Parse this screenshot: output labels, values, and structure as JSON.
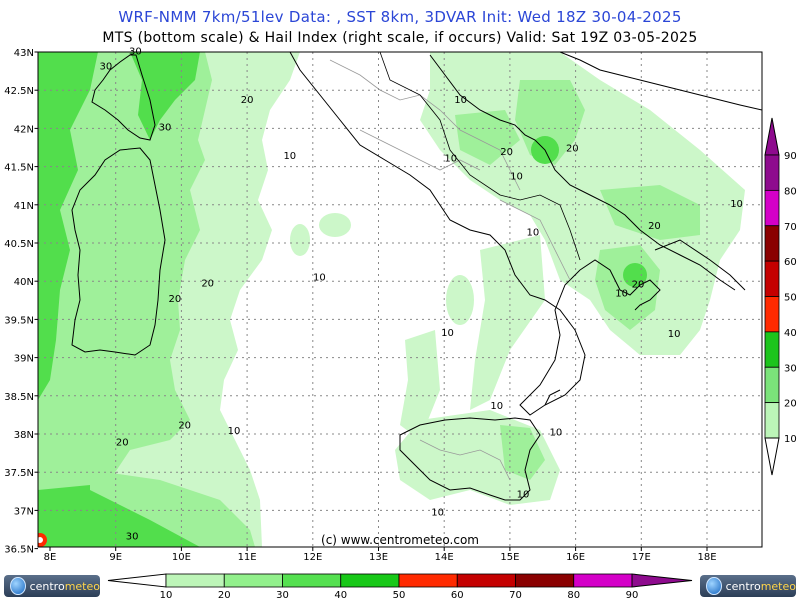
{
  "header": {
    "line1": "WRF-NMM 7km/51lev   Data: , SST 8km, 3DVAR    Init: Wed 18Z 30-04-2025",
    "line2": "MTS (bottom scale) & Hail Index (right scale, if occurs) Valid: Sat 19Z 03-05-2025"
  },
  "credit": "(c) www.centrometeo.com",
  "logo": {
    "text_a": "centro",
    "text_b": "meteo"
  },
  "axes": {
    "lat_labels": [
      "43N",
      "42.5N",
      "42N",
      "41.5N",
      "41N",
      "40.5N",
      "40N",
      "39.5N",
      "39N",
      "38.5N",
      "38N",
      "37.5N",
      "37N",
      "36.5N"
    ],
    "lon_labels": [
      "8E",
      "9E",
      "10E",
      "11E",
      "12E",
      "13E",
      "14E",
      "15E",
      "16E",
      "17E",
      "18E"
    ]
  },
  "contour_labels": [
    {
      "text": "30",
      "lon": 8.85,
      "lat": 42.77
    },
    {
      "text": "30",
      "lon": 9.3,
      "lat": 42.97
    },
    {
      "text": "20",
      "lon": 11.0,
      "lat": 42.33
    },
    {
      "text": "30",
      "lon": 9.75,
      "lat": 41.97
    },
    {
      "text": "10",
      "lon": 11.65,
      "lat": 41.6
    },
    {
      "text": "10",
      "lon": 14.25,
      "lat": 42.33
    },
    {
      "text": "10",
      "lon": 14.1,
      "lat": 41.57
    },
    {
      "text": "20",
      "lon": 14.95,
      "lat": 41.65
    },
    {
      "text": "20",
      "lon": 15.95,
      "lat": 41.7
    },
    {
      "text": "10",
      "lon": 15.1,
      "lat": 41.33
    },
    {
      "text": "10",
      "lon": 18.45,
      "lat": 40.97
    },
    {
      "text": "20",
      "lon": 17.2,
      "lat": 40.68
    },
    {
      "text": "10",
      "lon": 15.35,
      "lat": 40.6
    },
    {
      "text": "20",
      "lon": 16.95,
      "lat": 39.92
    },
    {
      "text": "10",
      "lon": 16.7,
      "lat": 39.8
    },
    {
      "text": "10",
      "lon": 12.1,
      "lat": 40.01
    },
    {
      "text": "20",
      "lon": 10.4,
      "lat": 39.93
    },
    {
      "text": "20",
      "lon": 9.9,
      "lat": 39.73
    },
    {
      "text": "10",
      "lon": 14.05,
      "lat": 39.28
    },
    {
      "text": "10",
      "lon": 17.5,
      "lat": 39.27
    },
    {
      "text": "10",
      "lon": 14.8,
      "lat": 38.33
    },
    {
      "text": "20",
      "lon": 10.05,
      "lat": 38.07
    },
    {
      "text": "10",
      "lon": 10.8,
      "lat": 38.0
    },
    {
      "text": "20",
      "lon": 9.1,
      "lat": 37.85
    },
    {
      "text": "10",
      "lon": 15.7,
      "lat": 37.98
    },
    {
      "text": "10",
      "lon": 15.2,
      "lat": 37.17
    },
    {
      "text": "10",
      "lon": 13.9,
      "lat": 36.93
    },
    {
      "text": "30",
      "lon": 9.25,
      "lat": 36.62
    }
  ],
  "hail_scale": {
    "labels": [
      "10",
      "20",
      "30",
      "40",
      "50",
      "60",
      "70",
      "80",
      "90"
    ],
    "colors": [
      "#ffffff",
      "#bcf5b8",
      "#7be37a",
      "#1cc41c",
      "#ff2a00",
      "#c40000",
      "#8a0000",
      "#d400c8",
      "#8e0b8e"
    ]
  },
  "mts_scale": {
    "labels": [
      "10",
      "20",
      "30",
      "40",
      "50",
      "60",
      "70",
      "80",
      "90"
    ],
    "colors": [
      "#bdf5b8",
      "#92f08c",
      "#55e050",
      "#18c818",
      "#ff2a00",
      "#c40000",
      "#8a0000",
      "#d400c8",
      "#8e0b8e"
    ]
  },
  "colors": {
    "land_line": "#000000",
    "region_line": "#9a9a9a",
    "grid": "#888888",
    "fill_low": "#ccf7c9",
    "fill_mid": "#9ff09a",
    "fill_high": "#52de4c"
  }
}
